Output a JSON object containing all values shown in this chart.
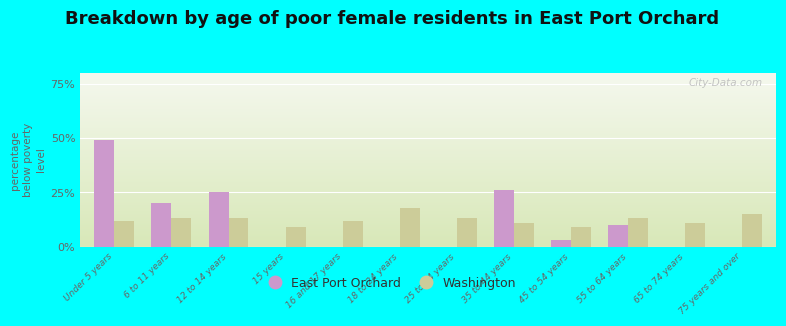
{
  "title": "Breakdown by age of poor female residents in East Port Orchard",
  "ylabel": "percentage\nbelow poverty\nlevel",
  "categories": [
    "Under 5 years",
    "6 to 11 years",
    "12 to 14 years",
    "15 years",
    "16 and 17 years",
    "18 to 24 years",
    "25 to 34 years",
    "35 to 44 years",
    "45 to 54 years",
    "55 to 64 years",
    "65 to 74 years",
    "75 years and over"
  ],
  "epo_values": [
    49,
    20,
    25,
    0,
    0,
    0,
    0,
    26,
    3,
    10,
    0,
    0
  ],
  "wa_values": [
    12,
    13,
    13,
    9,
    12,
    18,
    13,
    11,
    9,
    13,
    11,
    15
  ],
  "epo_color": "#cc99cc",
  "wa_color": "#cccc99",
  "bg_outer": "#00ffff",
  "grad_top": "#f5f8ee",
  "grad_bottom": "#d8e8b8",
  "yticks": [
    0,
    25,
    50,
    75
  ],
  "ytick_labels": [
    "0%",
    "25%",
    "50%",
    "75%"
  ],
  "ylim": [
    0,
    80
  ],
  "title_fontsize": 13,
  "legend_labels": [
    "East Port Orchard",
    "Washington"
  ],
  "watermark": "City-Data.com"
}
